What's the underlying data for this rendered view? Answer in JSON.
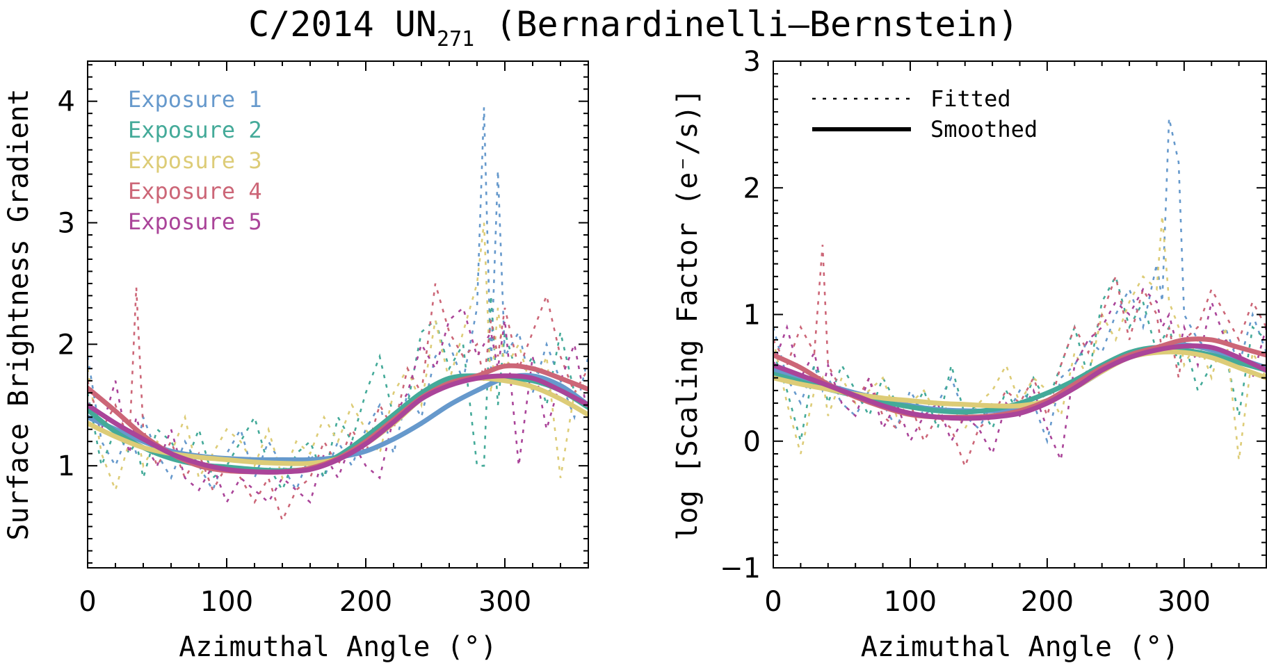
{
  "title": {
    "main": "C/2014 UN",
    "subscript": "271",
    "suffix": " (Bernardinelli–Bernstein)"
  },
  "chart_data": [
    {
      "type": "line",
      "panel": "left",
      "xlabel": "Azimuthal Angle (°)",
      "ylabel": "Surface Brightness Gradient",
      "xlim": [
        0,
        360
      ],
      "ylim": [
        0.16,
        4.33
      ],
      "xticks": [
        0,
        100,
        200,
        300
      ],
      "xtick_labels": [
        "0",
        "100",
        "200",
        "300"
      ],
      "yticks": [
        1,
        2,
        3,
        4
      ],
      "ytick_labels": [
        "1",
        "2",
        "3",
        "4"
      ],
      "x_minor_step": 20,
      "y_minor_step": 0.1,
      "legend": {
        "placement": "top-left",
        "entries": [
          "Exposure 1",
          "Exposure 2",
          "Exposure 3",
          "Exposure 4",
          "Exposure 5"
        ]
      },
      "smoothed_x": [
        0,
        20,
        40,
        60,
        80,
        100,
        120,
        140,
        160,
        180,
        200,
        220,
        240,
        260,
        280,
        300,
        320,
        340,
        360
      ],
      "fitted_x": [
        0,
        10,
        20,
        30,
        35,
        40,
        50,
        60,
        70,
        80,
        90,
        100,
        110,
        120,
        130,
        140,
        150,
        160,
        170,
        180,
        190,
        200,
        210,
        220,
        230,
        240,
        250,
        260,
        270,
        280,
        285,
        290,
        295,
        300,
        310,
        320,
        330,
        340,
        350,
        360
      ],
      "series": [
        {
          "name": "Exposure 1",
          "color": "#6699CC",
          "smoothed": [
            1.4,
            1.3,
            1.2,
            1.12,
            1.08,
            1.06,
            1.05,
            1.05,
            1.05,
            1.07,
            1.12,
            1.22,
            1.35,
            1.5,
            1.62,
            1.72,
            1.74,
            1.66,
            1.5
          ],
          "fitted": [
            1.9,
            1.2,
            1.0,
            1.3,
            1.1,
            1.4,
            1.1,
            0.9,
            1.2,
            1.0,
            0.8,
            1.1,
            1.3,
            0.9,
            1.2,
            1.0,
            0.8,
            1.1,
            0.9,
            1.2,
            1.0,
            1.3,
            1.5,
            1.1,
            1.6,
            1.4,
            1.9,
            2.0,
            1.7,
            2.3,
            3.95,
            1.8,
            3.43,
            1.9,
            2.1,
            1.6,
            2.0,
            1.7,
            1.4,
            1.9
          ]
        },
        {
          "name": "Exposure 2",
          "color": "#44AA99",
          "smoothed": [
            1.46,
            1.28,
            1.15,
            1.06,
            1.01,
            0.99,
            0.97,
            0.96,
            0.98,
            1.08,
            1.24,
            1.42,
            1.6,
            1.72,
            1.74,
            1.72,
            1.7,
            1.62,
            1.48
          ],
          "fitted": [
            1.6,
            1.0,
            1.3,
            1.1,
            1.2,
            0.9,
            1.3,
            1.2,
            1.0,
            1.3,
            0.9,
            1.0,
            1.2,
            1.4,
            1.0,
            0.8,
            1.1,
            1.2,
            0.9,
            1.4,
            1.2,
            1.6,
            1.9,
            1.4,
            1.5,
            2.1,
            2.2,
            1.8,
            2.0,
            1.0,
            1.0,
            2.4,
            1.5,
            2.1,
            1.7,
            1.9,
            1.5,
            2.1,
            1.6,
            1.5
          ]
        },
        {
          "name": "Exposure 3",
          "color": "#DDCC77",
          "smoothed": [
            1.35,
            1.24,
            1.15,
            1.1,
            1.07,
            1.05,
            1.03,
            1.02,
            1.02,
            1.06,
            1.18,
            1.35,
            1.55,
            1.68,
            1.72,
            1.7,
            1.65,
            1.55,
            1.42
          ],
          "fitted": [
            1.8,
            1.1,
            0.8,
            1.2,
            1.3,
            1.0,
            1.2,
            1.1,
            1.4,
            0.9,
            1.1,
            1.3,
            1.2,
            1.0,
            1.3,
            0.9,
            1.2,
            1.1,
            1.4,
            1.2,
            1.5,
            1.3,
            1.1,
            1.6,
            1.8,
            1.5,
            2.2,
            1.7,
            2.1,
            2.5,
            3.0,
            1.6,
            2.3,
            1.8,
            2.0,
            1.6,
            1.9,
            0.9,
            1.6,
            1.7
          ]
        },
        {
          "name": "Exposure 4",
          "color": "#CC6677",
          "smoothed": [
            1.64,
            1.45,
            1.25,
            1.1,
            1.0,
            0.96,
            0.95,
            0.95,
            0.98,
            1.06,
            1.2,
            1.38,
            1.56,
            1.68,
            1.74,
            1.82,
            1.8,
            1.72,
            1.63
          ],
          "fitted": [
            1.7,
            1.3,
            1.5,
            1.2,
            2.47,
            1.3,
            1.0,
            1.2,
            0.9,
            1.1,
            0.8,
            1.0,
            0.9,
            0.7,
            0.9,
            0.55,
            0.8,
            0.9,
            1.2,
            1.0,
            1.3,
            1.1,
            1.5,
            1.3,
            1.8,
            1.6,
            2.5,
            2.1,
            1.9,
            2.0,
            1.7,
            2.2,
            1.9,
            2.3,
            1.8,
            2.1,
            2.4,
            1.9,
            1.6,
            1.8
          ]
        },
        {
          "name": "Exposure 5",
          "color": "#AA4499",
          "smoothed": [
            1.5,
            1.35,
            1.22,
            1.1,
            1.02,
            0.97,
            0.95,
            0.95,
            0.97,
            1.05,
            1.18,
            1.36,
            1.55,
            1.66,
            1.72,
            1.74,
            1.72,
            1.62,
            1.5
          ],
          "fitted": [
            1.5,
            1.3,
            1.7,
            1.1,
            1.4,
            1.2,
            1.0,
            1.3,
            0.9,
            0.8,
            1.0,
            0.7,
            0.9,
            0.8,
            0.7,
            0.9,
            0.8,
            0.7,
            1.1,
            0.9,
            1.2,
            1.0,
            0.9,
            1.4,
            1.6,
            2.0,
            1.8,
            2.2,
            2.3,
            1.9,
            2.0,
            2.1,
            1.8,
            2.2,
            1.0,
            1.9,
            1.3,
            1.7,
            2.0,
            1.4
          ]
        }
      ]
    },
    {
      "type": "line",
      "panel": "right",
      "xlabel": "Azimuthal Angle (°)",
      "ylabel": "log [Scaling Factor (e⁻/s)]",
      "xlim": [
        0,
        360
      ],
      "ylim": [
        -1,
        3
      ],
      "xticks": [
        0,
        100,
        200,
        300
      ],
      "xtick_labels": [
        "0",
        "100",
        "200",
        "300"
      ],
      "yticks": [
        -1,
        0,
        1,
        2,
        3
      ],
      "ytick_labels": [
        "−1",
        "0",
        "1",
        "2",
        "3"
      ],
      "x_minor_step": 20,
      "y_minor_step": 0.1,
      "legend": {
        "placement": "top-right",
        "entries": [
          {
            "label": "Fitted",
            "style": "dotted"
          },
          {
            "label": "Smoothed",
            "style": "solid"
          }
        ]
      },
      "smoothed_x": [
        0,
        20,
        40,
        60,
        80,
        100,
        120,
        140,
        160,
        180,
        200,
        220,
        240,
        260,
        280,
        300,
        320,
        340,
        360
      ],
      "fitted_x": [
        0,
        10,
        20,
        30,
        36,
        40,
        50,
        60,
        70,
        80,
        90,
        100,
        110,
        120,
        130,
        140,
        150,
        160,
        170,
        180,
        190,
        200,
        210,
        220,
        230,
        240,
        250,
        260,
        270,
        280,
        284,
        289,
        296,
        300,
        310,
        320,
        330,
        340,
        350,
        360
      ],
      "series": [
        {
          "name": "Exposure 1",
          "color": "#6699CC",
          "smoothed": [
            0.57,
            0.5,
            0.44,
            0.38,
            0.33,
            0.28,
            0.25,
            0.24,
            0.24,
            0.26,
            0.32,
            0.42,
            0.55,
            0.68,
            0.74,
            0.76,
            0.72,
            0.65,
            0.58
          ],
          "fitted": [
            0.9,
            0.5,
            0.3,
            0.6,
            0.4,
            0.5,
            0.3,
            0.2,
            0.4,
            0.3,
            0.1,
            0.4,
            0.2,
            0.3,
            0.5,
            0.2,
            0.1,
            0.3,
            0.2,
            0.4,
            0.3,
            0.0,
            0.5,
            0.6,
            0.8,
            0.7,
            1.0,
            1.2,
            0.9,
            1.4,
            1.1,
            2.55,
            2.2,
            1.0,
            0.8,
            0.7,
            0.9,
            0.6,
            1.0,
            0.7
          ]
        },
        {
          "name": "Exposure 2",
          "color": "#44AA99",
          "smoothed": [
            0.53,
            0.47,
            0.41,
            0.36,
            0.31,
            0.27,
            0.24,
            0.23,
            0.25,
            0.3,
            0.38,
            0.48,
            0.6,
            0.7,
            0.74,
            0.72,
            0.68,
            0.62,
            0.56
          ],
          "fitted": [
            0.7,
            0.4,
            0.0,
            0.6,
            0.5,
            0.3,
            0.6,
            0.4,
            0.2,
            0.5,
            0.3,
            0.2,
            0.4,
            0.1,
            0.6,
            0.2,
            0.3,
            0.1,
            0.4,
            0.2,
            0.5,
            0.3,
            0.6,
            0.9,
            0.5,
            1.1,
            1.3,
            0.9,
            1.1,
            0.7,
            0.8,
            0.9,
            0.6,
            0.8,
            0.4,
            0.6,
            0.7,
            0.2,
            0.9,
            0.8
          ]
        },
        {
          "name": "Exposure 3",
          "color": "#DDCC77",
          "smoothed": [
            0.5,
            0.45,
            0.41,
            0.37,
            0.34,
            0.32,
            0.3,
            0.29,
            0.28,
            0.28,
            0.32,
            0.42,
            0.55,
            0.66,
            0.7,
            0.7,
            0.66,
            0.58,
            0.5
          ],
          "fitted": [
            0.8,
            0.3,
            -0.1,
            0.4,
            0.5,
            0.2,
            0.5,
            0.3,
            0.4,
            0.5,
            0.2,
            0.3,
            0.4,
            0.2,
            0.3,
            0.1,
            0.3,
            0.4,
            0.6,
            0.3,
            0.5,
            0.4,
            0.2,
            0.7,
            0.5,
            1.0,
            0.8,
            1.1,
            1.3,
            1.2,
            1.78,
            1.1,
            0.9,
            0.6,
            0.8,
            0.5,
            0.9,
            -0.15,
            0.7,
            0.5
          ]
        },
        {
          "name": "Exposure 4",
          "color": "#CC6677",
          "smoothed": [
            0.68,
            0.58,
            0.45,
            0.35,
            0.27,
            0.21,
            0.19,
            0.19,
            0.2,
            0.24,
            0.32,
            0.45,
            0.58,
            0.68,
            0.74,
            0.8,
            0.8,
            0.74,
            0.68
          ],
          "fitted": [
            0.8,
            0.6,
            0.9,
            0.7,
            1.55,
            0.6,
            0.4,
            0.3,
            0.5,
            0.2,
            0.1,
            0.3,
            0.0,
            0.2,
            0.1,
            -0.2,
            0.1,
            0.2,
            0.4,
            0.3,
            0.5,
            0.2,
            0.6,
            0.9,
            0.7,
            1.0,
            1.3,
            0.8,
            1.2,
            1.0,
            0.7,
            0.9,
            0.5,
            0.8,
            0.9,
            1.2,
            1.0,
            0.8,
            1.1,
            0.9
          ]
        },
        {
          "name": "Exposure 5",
          "color": "#AA4499",
          "smoothed": [
            0.6,
            0.52,
            0.44,
            0.36,
            0.28,
            0.22,
            0.19,
            0.18,
            0.19,
            0.22,
            0.3,
            0.42,
            0.56,
            0.66,
            0.72,
            0.75,
            0.74,
            0.66,
            0.56
          ],
          "fitted": [
            0.6,
            0.9,
            0.5,
            0.7,
            0.4,
            0.6,
            0.3,
            0.2,
            0.5,
            0.1,
            0.3,
            0.0,
            0.2,
            0.3,
            0.0,
            0.2,
            0.1,
            -0.1,
            0.3,
            0.2,
            0.4,
            0.1,
            -0.15,
            0.6,
            0.8,
            0.9,
            1.1,
            1.0,
            1.2,
            1.1,
            0.9,
            1.0,
            0.7,
            0.9,
            0.6,
            1.1,
            0.8,
            0.7,
            0.5,
            0.9
          ]
        }
      ]
    }
  ]
}
